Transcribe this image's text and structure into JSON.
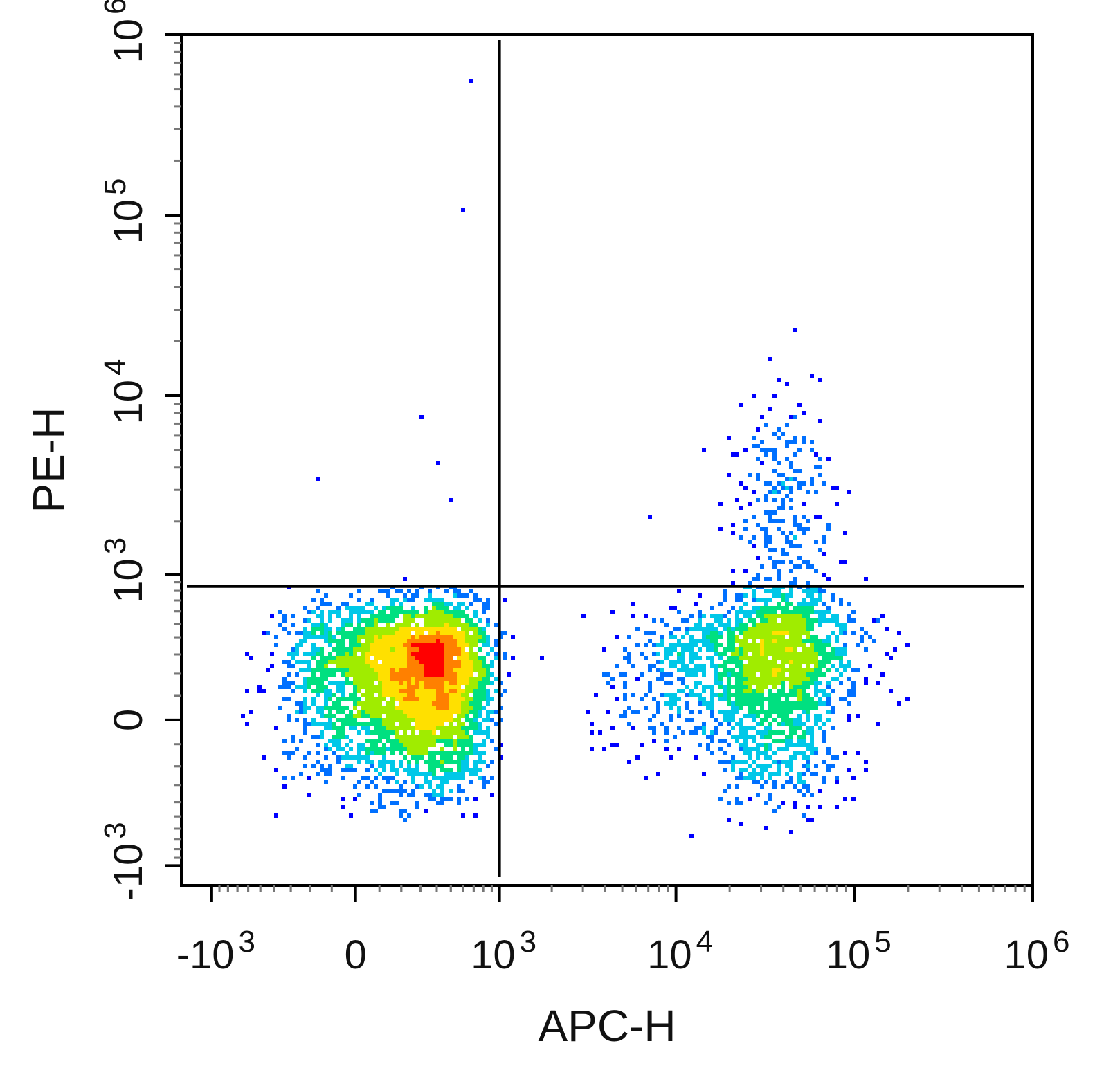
{
  "chart_data": {
    "type": "scatter",
    "subtype": "flow-cytometry-density-dot-plot",
    "xlabel": "APC-H",
    "ylabel": "PE-H",
    "x_scale": "biexponential",
    "y_scale": "biexponential",
    "xlim": [
      -1500,
      1000000
    ],
    "ylim": [
      -1300,
      1000000
    ],
    "x_ticks": [
      {
        "value": -1000,
        "base": "-10",
        "exp": "3"
      },
      {
        "value": 0,
        "base": "0",
        "exp": ""
      },
      {
        "value": 1000,
        "base": "10",
        "exp": "3"
      },
      {
        "value": 10000,
        "base": "10",
        "exp": "4"
      },
      {
        "value": 100000,
        "base": "10",
        "exp": "5"
      },
      {
        "value": 1000000,
        "base": "10",
        "exp": "6"
      }
    ],
    "y_ticks": [
      {
        "value": -1000,
        "base": "-10",
        "exp": "3"
      },
      {
        "value": 0,
        "base": "0",
        "exp": ""
      },
      {
        "value": 1000,
        "base": "10",
        "exp": "3"
      },
      {
        "value": 10000,
        "base": "10",
        "exp": "4"
      },
      {
        "value": 100000,
        "base": "10",
        "exp": "5"
      },
      {
        "value": 1000000,
        "base": "10",
        "exp": "6"
      }
    ],
    "quadrant_gate": {
      "x": 1000,
      "y": 850
    },
    "density_colormap": [
      "#0000ff",
      "#0070ff",
      "#00c8e8",
      "#00e080",
      "#a0ec00",
      "#ffe000",
      "#ff8000",
      "#ff0000"
    ],
    "grid": false,
    "legend": "none",
    "populations": [
      {
        "x_center": 280,
        "y_center": 180,
        "x_spread": 260,
        "y_spread": 230,
        "count": 4200
      },
      {
        "x_center": 40000,
        "y_center": 220,
        "x_spread_log10": 0.18,
        "y_spread": 280,
        "count": 1300
      },
      {
        "x_center": 20000,
        "y_center": 220,
        "x_spread_log10": 0.32,
        "y_spread": 180,
        "count": 900
      },
      {
        "x_center": 40000,
        "y_center": 2200,
        "x_spread_log10": 0.15,
        "y_spread_log10": 0.35,
        "count": 260
      }
    ],
    "outliers": [
      {
        "x": 680,
        "y": 560000
      },
      {
        "x": 600,
        "y": 108000
      },
      {
        "x": 300,
        "y": 7600
      },
      {
        "x": 58000,
        "y": 12800
      },
      {
        "x": 63000,
        "y": 12400
      },
      {
        "x": 90000,
        "y": 1700
      },
      {
        "x": -170,
        "y": 3500
      },
      {
        "x": 420,
        "y": 4200
      },
      {
        "x": 500,
        "y": 2600
      },
      {
        "x": 7000,
        "y": 2100
      },
      {
        "x": 14000,
        "y": 5000
      },
      {
        "x": 12000,
        "y": -650
      },
      {
        "x": -600,
        "y": 120
      },
      {
        "x": 600,
        "y": -1300
      }
    ]
  }
}
